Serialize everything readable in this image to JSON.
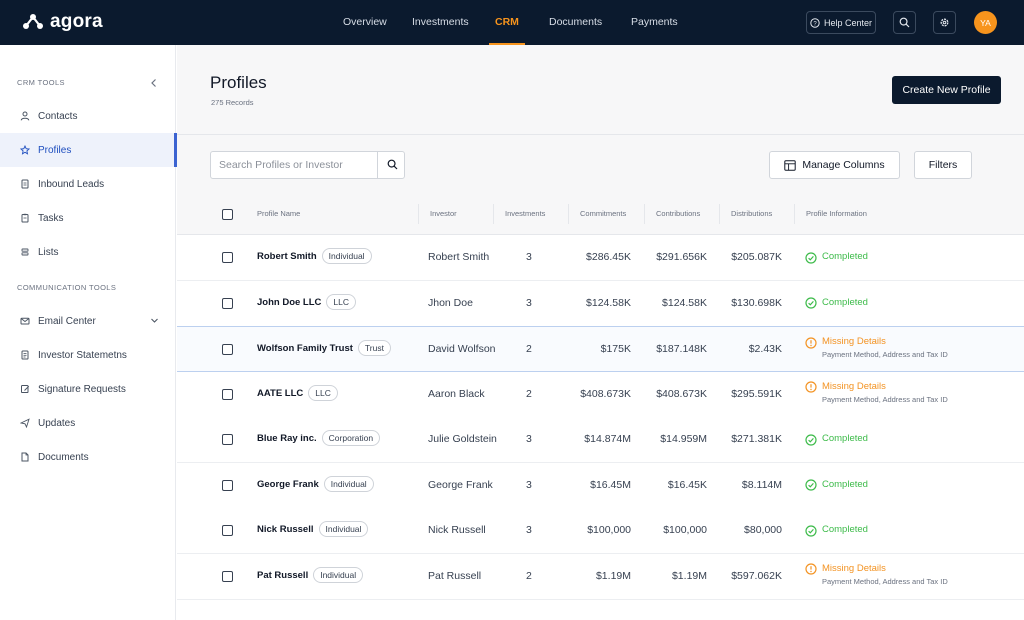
{
  "brand": {
    "name": "agora",
    "accent": "#f7941d",
    "nav_bg": "#0b1a2e"
  },
  "topnav": {
    "items": [
      {
        "label": "Overview",
        "active": false
      },
      {
        "label": "Investments",
        "active": false
      },
      {
        "label": "CRM",
        "active": true
      },
      {
        "label": "Documents",
        "active": false
      },
      {
        "label": "Payments",
        "active": false
      }
    ],
    "help_label": "Help Center",
    "avatar_initials": "YA"
  },
  "sidebar": {
    "section_crm": "CRM TOOLS",
    "crm_items": [
      {
        "label": "Contacts",
        "icon": "person-icon"
      },
      {
        "label": "Profiles",
        "icon": "star-icon",
        "active": true
      },
      {
        "label": "Inbound Leads",
        "icon": "document-icon"
      },
      {
        "label": "Tasks",
        "icon": "clipboard-icon"
      },
      {
        "label": "Lists",
        "icon": "list-icon"
      }
    ],
    "section_comm": "COMMUNICATION TOOLS",
    "comm_items": [
      {
        "label": "Email Center",
        "icon": "mail-icon"
      },
      {
        "label": "Investor Statemetns",
        "icon": "statement-icon"
      },
      {
        "label": "Signature Requests",
        "icon": "signature-icon"
      },
      {
        "label": "Updates",
        "icon": "send-icon"
      },
      {
        "label": "Documents",
        "icon": "file-icon"
      }
    ]
  },
  "page": {
    "title": "Profiles",
    "records": "275 Records",
    "create_label": "Create New Profile",
    "search_placeholder": "Search Profiles or Investor",
    "manage_label": "Manage Columns",
    "filters_label": "Filters"
  },
  "table": {
    "columns": [
      "Profile Name",
      "Investor",
      "Investments",
      "Commitments",
      "Contributions",
      "Distributions",
      "Profile Information"
    ],
    "rows": [
      {
        "name": "Robert Smith",
        "type": "Individual",
        "investor": "Robert Smith",
        "investments": "3",
        "commitments": "$286.45K",
        "contributions": "$291.656K",
        "distributions": "$205.087K",
        "status": "Completed",
        "detail": ""
      },
      {
        "name": "John Doe LLC",
        "type": "LLC",
        "investor": "Jhon Doe",
        "investments": "3",
        "commitments": "$124.58K",
        "contributions": "$124.58K",
        "distributions": "$130.698K",
        "status": "Completed",
        "detail": ""
      },
      {
        "name": "Wolfson Family Trust",
        "type": "Trust",
        "investor": "David Wolfson",
        "investments": "2",
        "commitments": "$175K",
        "contributions": "$187.148K",
        "distributions": "$2.43K",
        "status": "Missing Details",
        "detail": "Payment Method, Address and Tax ID"
      },
      {
        "name": "AATE LLC",
        "type": "LLC",
        "investor": "Aaron Black",
        "investments": "2",
        "commitments": "$408.673K",
        "contributions": "$408.673K",
        "distributions": "$295.591K",
        "status": "Missing Details",
        "detail": "Payment Method, Address and Tax ID"
      },
      {
        "name": "Blue Ray inc.",
        "type": "Corporation",
        "investor": "Julie Goldstein",
        "investments": "3",
        "commitments": "$14.874M",
        "contributions": "$14.959M",
        "distributions": "$271.381K",
        "status": "Completed",
        "detail": ""
      },
      {
        "name": "George Frank",
        "type": "Individual",
        "investor": "George Frank",
        "investments": "3",
        "commitments": "$16.45M",
        "contributions": "$16.45K",
        "distributions": "$8.114M",
        "status": "Completed",
        "detail": ""
      },
      {
        "name": "Nick Russell",
        "type": "Individual",
        "investor": "Nick Russell",
        "investments": "3",
        "commitments": "$100,000",
        "contributions": "$100,000",
        "distributions": "$80,000",
        "status": "Completed",
        "detail": ""
      },
      {
        "name": "Pat Russell",
        "type": "Individual",
        "investor": "Pat Russell",
        "investments": "2",
        "commitments": "$1.19M",
        "contributions": "$1.19M",
        "distributions": "$597.062K",
        "status": "Missing Details",
        "detail": "Payment Method, Address and Tax ID"
      }
    ],
    "status_colors": {
      "Completed": "#3dbb4a",
      "Missing Details": "#f39323"
    }
  }
}
